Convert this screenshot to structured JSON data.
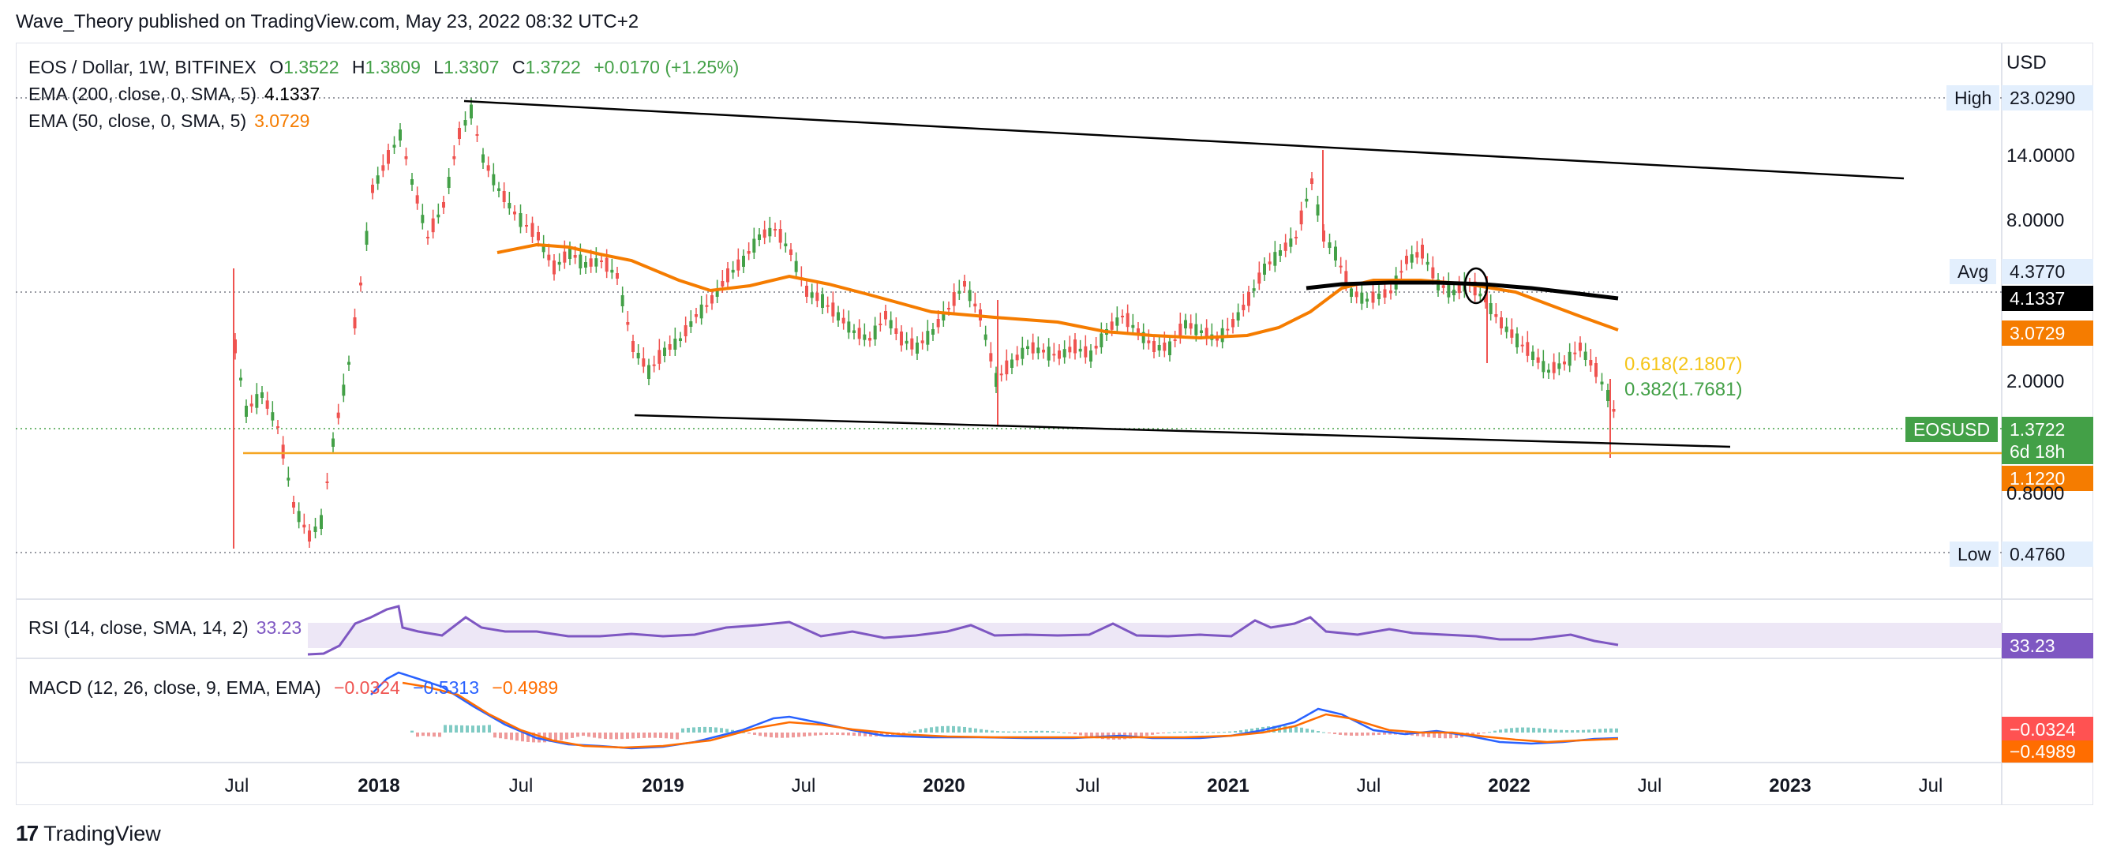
{
  "header": {
    "publisher": "Wave_Theory published on TradingView.com, May 23, 2022 08:32 UTC+2"
  },
  "main_legend": {
    "symbol": "EOS / Dollar, 1W, BITFINEX",
    "o_label": "O",
    "o_value": "1.3522",
    "h_label": "H",
    "h_value": "1.3809",
    "l_label": "L",
    "l_value": "1.3307",
    "c_label": "C",
    "c_value": "1.3722",
    "change": "+0.0170 (+1.25%)",
    "ema200_label": "EMA (200, close, 0, SMA, 5)",
    "ema200_value": "4.1337",
    "ema50_label": "EMA (50, close, 0, SMA, 5)",
    "ema50_value": "3.0729"
  },
  "price_axis": {
    "currency": "USD",
    "ticks": [
      "14.0000",
      "8.0000",
      "2.0000",
      "0.8000"
    ],
    "high_label": "High",
    "high_value": "23.0290",
    "avg_label": "Avg",
    "avg_value": "4.3770",
    "low_label": "Low",
    "low_value": "0.4760",
    "ema200_badge": "4.1337",
    "ema50_badge": "3.0729",
    "symbol_badge": "EOSUSD",
    "last_price": "1.3722",
    "countdown": "6d 18h",
    "line_badge": "1.1220"
  },
  "fib_labels": {
    "f618": "0.618(2.1807)",
    "f382": "0.382(1.7681)"
  },
  "time_axis": {
    "labels": [
      "Jul",
      "2018",
      "Jul",
      "2019",
      "Jul",
      "2020",
      "Jul",
      "2021",
      "Jul",
      "2022",
      "Jul",
      "2023",
      "Jul"
    ]
  },
  "rsi": {
    "label": "RSI (14, close, SMA, 14, 2)",
    "value": "33.23",
    "badge": "33.23"
  },
  "macd": {
    "label": "MACD (12, 26, close, 9, EMA, EMA)",
    "hist": "−0.0324",
    "macd": "−0.5313",
    "signal": "−0.4989",
    "badge_hist": "−0.0324",
    "badge_signal": "−0.4989"
  },
  "footer": {
    "logo": "17",
    "brand": "TradingView"
  },
  "colors": {
    "up": "#26a69a",
    "green": "#43a047",
    "red": "#ef5350",
    "ema50": "#f57c00",
    "ema200": "#000000",
    "rsi": "#7e57c2",
    "macd": "#2962ff",
    "signal": "#ff6d00"
  }
}
